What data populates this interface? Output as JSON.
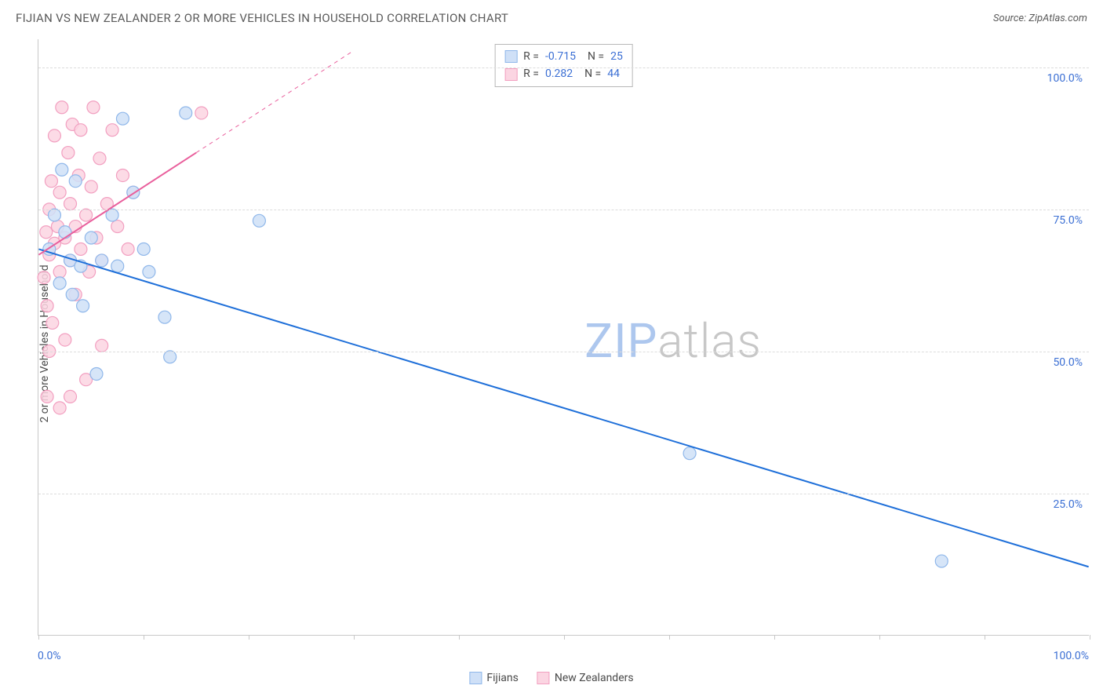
{
  "header": {
    "title": "FIJIAN VS NEW ZEALANDER 2 OR MORE VEHICLES IN HOUSEHOLD CORRELATION CHART",
    "source": "Source: ZipAtlas.com"
  },
  "chart": {
    "type": "scatter",
    "ylabel": "2 or more Vehicles in Household",
    "xlim": [
      0,
      100
    ],
    "ylim": [
      0,
      105
    ],
    "x_ticks": [
      0,
      10,
      20,
      30,
      40,
      50,
      60,
      70,
      80,
      90,
      100
    ],
    "x_tick_labels": {
      "0": "0.0%",
      "100": "100.0%"
    },
    "y_gridlines": [
      25,
      50,
      75,
      100
    ],
    "y_tick_labels": [
      "25.0%",
      "50.0%",
      "75.0%",
      "100.0%"
    ],
    "background_color": "#ffffff",
    "grid_color": "#dcdcdc",
    "axis_color": "#c8c8c8",
    "marker_radius": 8,
    "marker_stroke_width": 1.2,
    "line_width": 2,
    "series": [
      {
        "name": "Fijians",
        "fill": "#cfe0f7",
        "stroke": "#8fb7ea",
        "line_color": "#1e6fd9",
        "R": "-0.715",
        "N": "25",
        "trend": {
          "x1": 0,
          "y1": 68,
          "x2": 100,
          "y2": 12
        },
        "trend_dash": {
          "x1": 0,
          "y1": 68,
          "x2": 0,
          "y2": 68
        },
        "points": [
          [
            1.0,
            68
          ],
          [
            1.5,
            74
          ],
          [
            2.0,
            62
          ],
          [
            2.2,
            82
          ],
          [
            2.5,
            71
          ],
          [
            3.0,
            66
          ],
          [
            3.2,
            60
          ],
          [
            3.5,
            80
          ],
          [
            4.0,
            65
          ],
          [
            4.2,
            58
          ],
          [
            5.0,
            70
          ],
          [
            5.5,
            46
          ],
          [
            6.0,
            66
          ],
          [
            7.0,
            74
          ],
          [
            7.5,
            65
          ],
          [
            8.0,
            91
          ],
          [
            9.0,
            78
          ],
          [
            10.0,
            68
          ],
          [
            10.5,
            64
          ],
          [
            12.0,
            56
          ],
          [
            12.5,
            49
          ],
          [
            14.0,
            92
          ],
          [
            21.0,
            73
          ],
          [
            62.0,
            32
          ],
          [
            86.0,
            13
          ]
        ]
      },
      {
        "name": "New Zealanders",
        "fill": "#fbd5e2",
        "stroke": "#f29fc0",
        "line_color": "#e95f9c",
        "R": "0.282",
        "N": "44",
        "trend": {
          "x1": 0,
          "y1": 67,
          "x2": 15,
          "y2": 85
        },
        "trend_dash": {
          "x1": 15,
          "y1": 85,
          "x2": 30,
          "y2": 103
        },
        "points": [
          [
            0.5,
            63
          ],
          [
            0.7,
            71
          ],
          [
            0.8,
            58
          ],
          [
            1.0,
            67
          ],
          [
            1.0,
            75
          ],
          [
            1.2,
            80
          ],
          [
            1.3,
            55
          ],
          [
            1.5,
            69
          ],
          [
            1.5,
            88
          ],
          [
            1.8,
            72
          ],
          [
            2.0,
            64
          ],
          [
            2.0,
            78
          ],
          [
            2.2,
            93
          ],
          [
            2.5,
            70
          ],
          [
            2.5,
            52
          ],
          [
            2.8,
            85
          ],
          [
            3.0,
            66
          ],
          [
            3.0,
            76
          ],
          [
            3.2,
            90
          ],
          [
            3.5,
            60
          ],
          [
            3.5,
            72
          ],
          [
            3.8,
            81
          ],
          [
            4.0,
            68
          ],
          [
            4.0,
            89
          ],
          [
            4.5,
            74
          ],
          [
            4.8,
            64
          ],
          [
            5.0,
            79
          ],
          [
            5.2,
            93
          ],
          [
            5.5,
            70
          ],
          [
            5.8,
            84
          ],
          [
            6.0,
            66
          ],
          [
            6.5,
            76
          ],
          [
            7.0,
            89
          ],
          [
            7.5,
            72
          ],
          [
            8.0,
            81
          ],
          [
            8.5,
            68
          ],
          [
            9.0,
            78
          ],
          [
            2.0,
            40
          ],
          [
            3.0,
            42
          ],
          [
            4.5,
            45
          ],
          [
            6.0,
            51
          ],
          [
            1.0,
            50
          ],
          [
            0.8,
            42
          ],
          [
            15.5,
            92
          ]
        ]
      }
    ]
  },
  "legend": {
    "series1": "Fijians",
    "series2": "New Zealanders"
  },
  "watermark": {
    "zip": "ZIP",
    "atlas": "atlas"
  }
}
